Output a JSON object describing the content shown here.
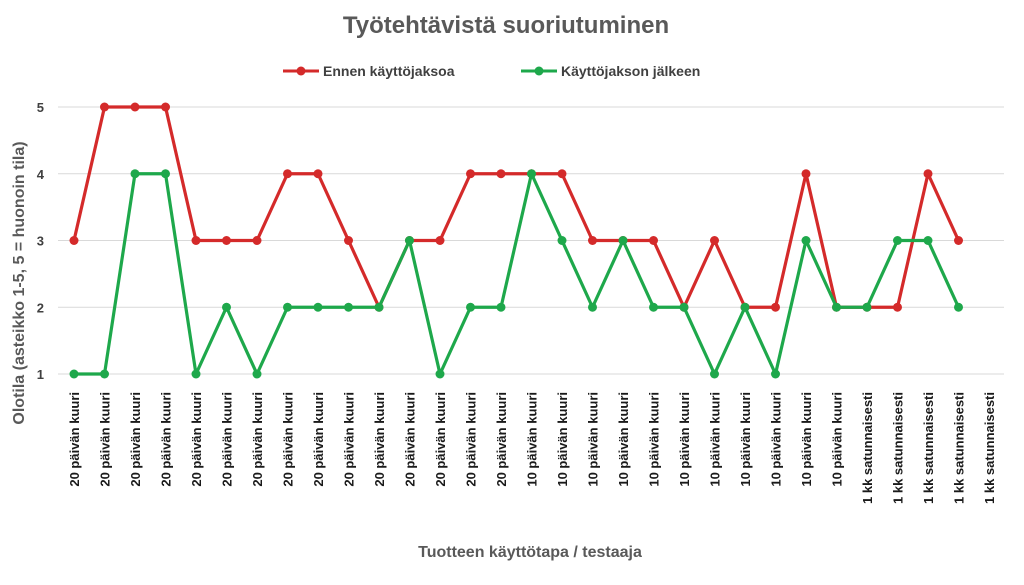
{
  "chart_data": {
    "type": "line",
    "title": "Työtehtävistä suoriutuminen",
    "xlabel": "Tuotteen käyttötapa / testaaja",
    "ylabel": "Olotila (asteikko 1-5, 5 = huonoin tila)",
    "ylim": [
      1,
      5
    ],
    "yticks": [
      "1",
      "2",
      "3",
      "4",
      "5"
    ],
    "grid": true,
    "legend_position": "top",
    "categories": [
      "20 päivän kuuri",
      "20 päivän kuuri",
      "20 päivän kuuri",
      "20 päivän kuuri",
      "20 päivän kuuri",
      "20 päivän kuuri",
      "20 päivän kuuri",
      "20 päivän kuuri",
      "20 päivän kuuri",
      "20 päivän kuuri",
      "20 päivän kuuri",
      "20 päivän kuuri",
      "20 päivän kuuri",
      "20 päivän kuuri",
      "20 päivän kuuri",
      "10 päivän kuuri",
      "10 päivän kuuri",
      "10 päivän kuuri",
      "10 päivän kuuri",
      "10 päivän kuuri",
      "10 päivän kuuri",
      "10 päivän kuuri",
      "10 päivän kuuri",
      "10 päivän kuuri",
      "10 päivän kuuri",
      "10 päivän kuuri",
      "1 kk satunnaisesti",
      "1 kk satunnaisesti",
      "1 kk satunnaisesti",
      "1 kk satunnaisesti",
      "1 kk satunnaisesti"
    ],
    "series": [
      {
        "name": "Ennen käyttöjaksoa",
        "color": "#d42a2a",
        "values": [
          3,
          5,
          5,
          5,
          3,
          3,
          3,
          4,
          4,
          3,
          2,
          3,
          3,
          4,
          4,
          4,
          4,
          3,
          3,
          3,
          2,
          3,
          2,
          2,
          4,
          2,
          2,
          2,
          4,
          3,
          null
        ]
      },
      {
        "name": "Käyttöjakson jälkeen",
        "color": "#1ea84b",
        "values": [
          1,
          1,
          4,
          4,
          1,
          2,
          1,
          2,
          2,
          2,
          2,
          3,
          1,
          2,
          2,
          4,
          3,
          2,
          3,
          2,
          2,
          1,
          2,
          1,
          3,
          2,
          2,
          3,
          3,
          2,
          null
        ]
      }
    ]
  }
}
